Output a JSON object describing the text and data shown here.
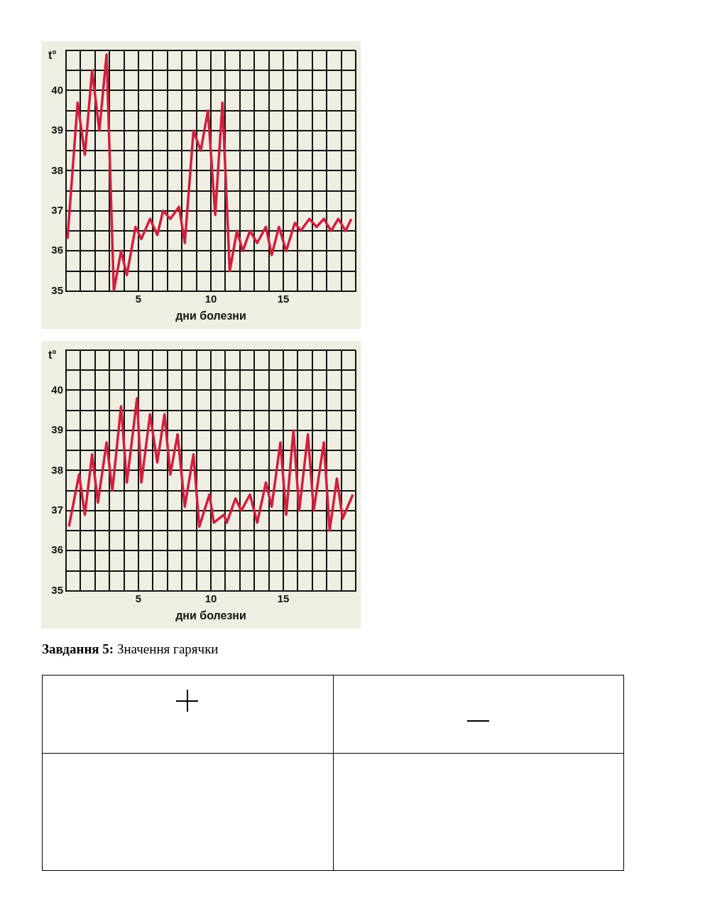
{
  "chart_data": [
    {
      "type": "line",
      "ylabel": "t°",
      "xlabel": "дни болезни",
      "marker": "none",
      "grid": true,
      "x": [
        0.1,
        0.8,
        1.3,
        1.8,
        2.3,
        2.8,
        3.3,
        3.8,
        4.2,
        4.8,
        5.2,
        5.8,
        6.3,
        6.7,
        7.2,
        7.8,
        8.2,
        8.8,
        9.3,
        9.8,
        10.3,
        10.8,
        11.3,
        11.8,
        12.2,
        12.7,
        13.2,
        13.8,
        14.2,
        14.7,
        15.2,
        15.8,
        16.2,
        16.8,
        17.3,
        17.8,
        18.3,
        18.8,
        19.3,
        19.7
      ],
      "series": [
        {
          "color": "#d21e3c",
          "values": [
            36.3,
            39.7,
            38.4,
            40.5,
            39.0,
            40.9,
            35.0,
            36.0,
            35.4,
            36.6,
            36.3,
            36.8,
            36.4,
            37.0,
            36.8,
            37.1,
            36.2,
            39.0,
            38.5,
            39.5,
            36.9,
            39.7,
            35.5,
            36.5,
            36.0,
            36.5,
            36.2,
            36.6,
            35.9,
            36.6,
            36.0,
            36.7,
            36.5,
            36.8,
            36.6,
            36.8,
            36.5,
            36.8,
            36.5,
            36.8
          ]
        }
      ],
      "xlim": [
        0,
        20
      ],
      "xticks": [
        {
          "value": 0,
          "label": null
        },
        {
          "value": 1,
          "label": null
        },
        {
          "value": 2,
          "label": null
        },
        {
          "value": 3,
          "label": null
        },
        {
          "value": 4,
          "label": null
        },
        5,
        {
          "value": 6,
          "label": null
        },
        {
          "value": 7,
          "label": null
        },
        {
          "value": 8,
          "label": null
        },
        {
          "value": 9,
          "label": null
        },
        10,
        {
          "value": 11,
          "label": null
        },
        {
          "value": 12,
          "label": null
        },
        {
          "value": 13,
          "label": null
        },
        {
          "value": 14,
          "label": null
        },
        15,
        {
          "value": 16,
          "label": null
        },
        {
          "value": 17,
          "label": null
        },
        {
          "value": 18,
          "label": null
        },
        {
          "value": 19,
          "label": null
        },
        {
          "value": 20,
          "label": null
        }
      ],
      "ylim": [
        35,
        41
      ],
      "yticks": [
        35,
        {
          "value": 35.5,
          "label": null
        },
        36,
        {
          "value": 36.5,
          "label": null
        },
        37,
        {
          "value": 37.5,
          "label": null
        },
        38,
        {
          "value": 38.5,
          "label": null
        },
        39,
        {
          "value": 39.5,
          "label": null
        },
        40,
        {
          "value": 40.5,
          "label": null
        },
        {
          "value": 41,
          "label": null
        }
      ]
    },
    {
      "type": "line",
      "ylabel": "t°",
      "xlabel": "дни болезни",
      "marker": "none",
      "grid": true,
      "x": [
        0.2,
        0.9,
        1.3,
        1.8,
        2.2,
        2.8,
        3.2,
        3.8,
        4.2,
        4.9,
        5.2,
        5.8,
        6.3,
        6.8,
        7.2,
        7.7,
        8.2,
        8.8,
        9.2,
        9.9,
        10.2,
        10.9,
        11.1,
        11.7,
        12.1,
        12.7,
        13.2,
        13.8,
        14.2,
        14.8,
        15.2,
        15.7,
        16.1,
        16.7,
        17.1,
        17.8,
        18.2,
        18.7,
        19.1,
        19.8
      ],
      "series": [
        {
          "color": "#d21e3c",
          "values": [
            36.6,
            37.9,
            36.9,
            38.4,
            37.2,
            38.7,
            37.5,
            39.6,
            37.7,
            39.8,
            37.7,
            39.4,
            38.2,
            39.4,
            37.9,
            38.9,
            37.1,
            38.4,
            36.6,
            37.4,
            36.7,
            36.9,
            36.7,
            37.3,
            37.0,
            37.4,
            36.7,
            37.7,
            37.1,
            38.7,
            36.9,
            39.0,
            37.0,
            38.9,
            37.0,
            38.7,
            36.5,
            37.8,
            36.8,
            37.4
          ]
        }
      ],
      "xlim": [
        0,
        20
      ],
      "xticks": [
        {
          "value": 0,
          "label": null
        },
        {
          "value": 1,
          "label": null
        },
        {
          "value": 2,
          "label": null
        },
        {
          "value": 3,
          "label": null
        },
        {
          "value": 4,
          "label": null
        },
        5,
        {
          "value": 6,
          "label": null
        },
        {
          "value": 7,
          "label": null
        },
        {
          "value": 8,
          "label": null
        },
        {
          "value": 9,
          "label": null
        },
        10,
        {
          "value": 11,
          "label": null
        },
        {
          "value": 12,
          "label": null
        },
        {
          "value": 13,
          "label": null
        },
        {
          "value": 14,
          "label": null
        },
        15,
        {
          "value": 16,
          "label": null
        },
        {
          "value": 17,
          "label": null
        },
        {
          "value": 18,
          "label": null
        },
        {
          "value": 19,
          "label": null
        },
        {
          "value": 20,
          "label": null
        }
      ],
      "ylim": [
        35,
        41
      ],
      "yticks": [
        35,
        {
          "value": 35.5,
          "label": null
        },
        36,
        {
          "value": 36.5,
          "label": null
        },
        37,
        {
          "value": 37.5,
          "label": null
        },
        38,
        {
          "value": 38.5,
          "label": null
        },
        39,
        {
          "value": 39.5,
          "label": null
        },
        40,
        {
          "value": 40.5,
          "label": null
        },
        {
          "value": 41,
          "label": null
        }
      ],
      "annotations": [
        "Завдання 5: Значення гарячки"
      ]
    }
  ]
}
